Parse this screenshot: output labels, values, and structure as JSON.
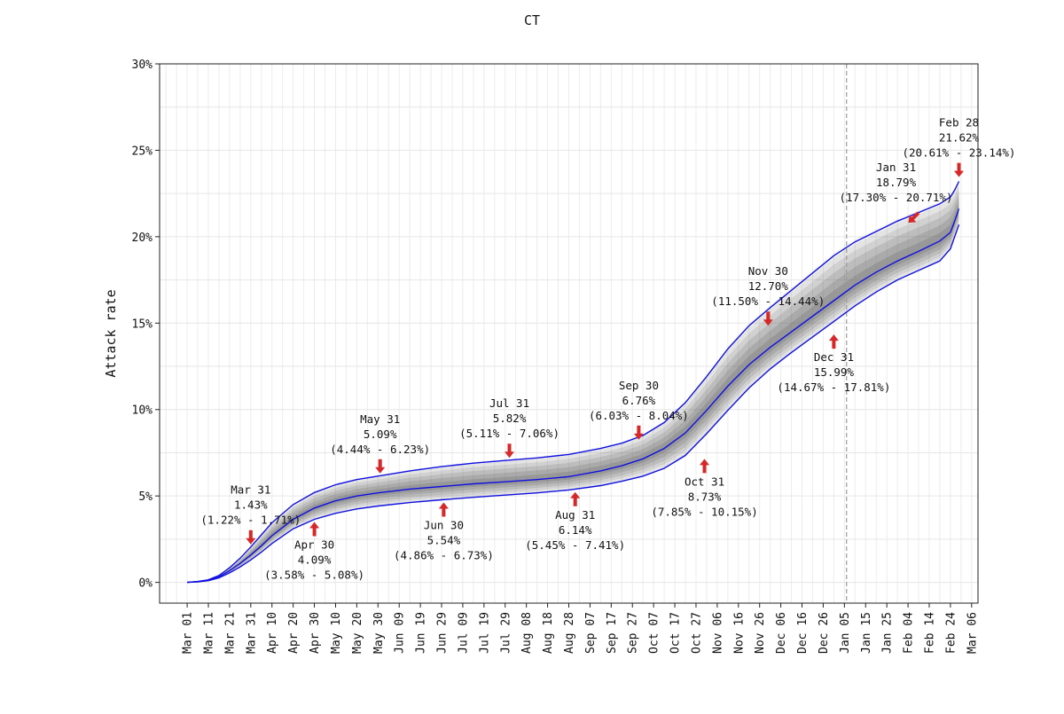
{
  "chart_data": {
    "type": "line",
    "title": "CT",
    "ylabel": "Attack rate",
    "xlabel": "",
    "ylim": [
      -1.2,
      30
    ],
    "xlim_days": [
      -13,
      373
    ],
    "grid": true,
    "y_ticks": [
      {
        "value": 0,
        "label": "0%"
      },
      {
        "value": 5,
        "label": "5%"
      },
      {
        "value": 10,
        "label": "10%"
      },
      {
        "value": 15,
        "label": "15%"
      },
      {
        "value": 20,
        "label": "20%"
      },
      {
        "value": 25,
        "label": "25%"
      },
      {
        "value": 30,
        "label": "30%"
      }
    ],
    "x_ticks": [
      {
        "day": 0,
        "label": "Mar 01"
      },
      {
        "day": 10,
        "label": "Mar 11"
      },
      {
        "day": 20,
        "label": "Mar 21"
      },
      {
        "day": 30,
        "label": "Mar 31"
      },
      {
        "day": 40,
        "label": "Apr 10"
      },
      {
        "day": 50,
        "label": "Apr 20"
      },
      {
        "day": 60,
        "label": "Apr 30"
      },
      {
        "day": 70,
        "label": "May 10"
      },
      {
        "day": 80,
        "label": "May 20"
      },
      {
        "day": 90,
        "label": "May 30"
      },
      {
        "day": 100,
        "label": "Jun 09"
      },
      {
        "day": 110,
        "label": "Jun 19"
      },
      {
        "day": 120,
        "label": "Jun 29"
      },
      {
        "day": 130,
        "label": "Jul 09"
      },
      {
        "day": 140,
        "label": "Jul 19"
      },
      {
        "day": 150,
        "label": "Jul 29"
      },
      {
        "day": 160,
        "label": "Aug 08"
      },
      {
        "day": 170,
        "label": "Aug 18"
      },
      {
        "day": 180,
        "label": "Aug 28"
      },
      {
        "day": 190,
        "label": "Sep 07"
      },
      {
        "day": 200,
        "label": "Sep 17"
      },
      {
        "day": 210,
        "label": "Sep 27"
      },
      {
        "day": 220,
        "label": "Oct 07"
      },
      {
        "day": 230,
        "label": "Oct 17"
      },
      {
        "day": 240,
        "label": "Oct 27"
      },
      {
        "day": 250,
        "label": "Nov 06"
      },
      {
        "day": 260,
        "label": "Nov 16"
      },
      {
        "day": 270,
        "label": "Nov 26"
      },
      {
        "day": 280,
        "label": "Dec 06"
      },
      {
        "day": 290,
        "label": "Dec 16"
      },
      {
        "day": 300,
        "label": "Dec 26"
      },
      {
        "day": 310,
        "label": "Jan 05"
      },
      {
        "day": 320,
        "label": "Jan 15"
      },
      {
        "day": 330,
        "label": "Jan 25"
      },
      {
        "day": 340,
        "label": "Feb 04"
      },
      {
        "day": 350,
        "label": "Feb 14"
      },
      {
        "day": 360,
        "label": "Feb 24"
      },
      {
        "day": 370,
        "label": "Mar 06"
      }
    ],
    "vline_day": 311,
    "series": [
      {
        "name": "upper",
        "color": "#1010e0",
        "x": [
          0,
          5,
          10,
          15,
          20,
          25,
          30,
          35,
          40,
          50,
          60,
          70,
          80,
          90,
          105,
          120,
          135,
          150,
          165,
          180,
          195,
          205,
          215,
          225,
          235,
          245,
          255,
          265,
          275,
          285,
          295,
          305,
          315,
          325,
          335,
          345,
          355,
          360,
          362,
          364
        ],
        "y": [
          0,
          0.05,
          0.15,
          0.4,
          0.85,
          1.4,
          2.05,
          2.75,
          3.45,
          4.5,
          5.2,
          5.65,
          5.95,
          6.15,
          6.45,
          6.7,
          6.9,
          7.05,
          7.2,
          7.4,
          7.75,
          8.05,
          8.5,
          9.25,
          10.4,
          11.9,
          13.5,
          14.85,
          15.9,
          16.9,
          17.9,
          18.9,
          19.7,
          20.3,
          20.9,
          21.4,
          21.9,
          22.3,
          22.7,
          23.2
        ]
      },
      {
        "name": "median",
        "color": "#1010e0",
        "x": [
          0,
          5,
          10,
          15,
          20,
          25,
          30,
          35,
          40,
          50,
          60,
          70,
          80,
          90,
          105,
          120,
          135,
          150,
          165,
          180,
          195,
          205,
          215,
          225,
          235,
          245,
          255,
          265,
          275,
          285,
          295,
          305,
          315,
          325,
          335,
          345,
          355,
          360,
          362,
          364
        ],
        "y": [
          0,
          0.04,
          0.12,
          0.32,
          0.68,
          1.1,
          1.58,
          2.12,
          2.7,
          3.65,
          4.3,
          4.72,
          5.0,
          5.18,
          5.4,
          5.55,
          5.7,
          5.82,
          5.95,
          6.12,
          6.45,
          6.75,
          7.15,
          7.75,
          8.65,
          9.95,
          11.35,
          12.6,
          13.6,
          14.5,
          15.4,
          16.3,
          17.2,
          17.95,
          18.6,
          19.15,
          19.75,
          20.25,
          20.9,
          21.62
        ]
      },
      {
        "name": "lower",
        "color": "#1010e0",
        "x": [
          0,
          5,
          10,
          15,
          20,
          25,
          30,
          35,
          40,
          50,
          60,
          70,
          80,
          90,
          105,
          120,
          135,
          150,
          165,
          180,
          195,
          205,
          215,
          225,
          235,
          245,
          255,
          265,
          275,
          285,
          295,
          305,
          315,
          325,
          335,
          345,
          355,
          360,
          362,
          364
        ],
        "y": [
          0,
          0.03,
          0.1,
          0.26,
          0.55,
          0.9,
          1.3,
          1.75,
          2.25,
          3.1,
          3.65,
          4.0,
          4.25,
          4.42,
          4.62,
          4.78,
          4.92,
          5.05,
          5.18,
          5.35,
          5.6,
          5.85,
          6.15,
          6.6,
          7.35,
          8.6,
          9.95,
          11.25,
          12.35,
          13.3,
          14.2,
          15.1,
          16.0,
          16.8,
          17.5,
          18.05,
          18.6,
          19.3,
          20.0,
          20.7
        ]
      }
    ],
    "annotations": [
      {
        "label": "Mar 31",
        "value": "1.43%",
        "range": "(1.22% - 1.71%)",
        "day": 30,
        "y": 2.05,
        "arrow": "down"
      },
      {
        "label": "Apr 30",
        "value": "4.09%",
        "range": "(3.58% - 5.08%)",
        "day": 60,
        "y": 3.65,
        "arrow": "up"
      },
      {
        "label": "May 31",
        "value": "5.09%",
        "range": "(4.44% - 6.23%)",
        "day": 91,
        "y": 6.15,
        "arrow": "down"
      },
      {
        "label": "Jun 30",
        "value": "5.54%",
        "range": "(4.86% - 6.73%)",
        "day": 121,
        "y": 4.78,
        "arrow": "up"
      },
      {
        "label": "Jul 31",
        "value": "5.82%",
        "range": "(5.11% - 7.06%)",
        "day": 152,
        "y": 7.05,
        "arrow": "down"
      },
      {
        "label": "Aug 31",
        "value": "6.14%",
        "range": "(5.45% - 7.41%)",
        "day": 183,
        "y": 5.38,
        "arrow": "up"
      },
      {
        "label": "Sep 30",
        "value": "6.76%",
        "range": "(6.03% - 8.04%)",
        "day": 213,
        "y": 8.1,
        "arrow": "down"
      },
      {
        "label": "Oct 31",
        "value": "8.73%",
        "range": "(7.85% - 10.15%)",
        "day": 244,
        "y": 7.3,
        "arrow": "up"
      },
      {
        "label": "Nov 30",
        "value": "12.70%",
        "range": "(11.50% - 14.44%)",
        "day": 274,
        "y": 14.7,
        "arrow": "down"
      },
      {
        "label": "Dec 31",
        "value": "15.99%",
        "range": "(14.67% - 17.81%)",
        "day": 305,
        "y": 14.5,
        "arrow": "up"
      },
      {
        "label": "Jan 31",
        "value": "18.79%",
        "range": "(17.30% - 20.71%)",
        "day": 336,
        "y": 20.7,
        "arrow": "diag"
      },
      {
        "label": "Feb 28",
        "value": "21.62%",
        "range": "(20.61% - 23.14%)",
        "day": 364,
        "y": 23.3,
        "arrow": "down"
      }
    ]
  }
}
